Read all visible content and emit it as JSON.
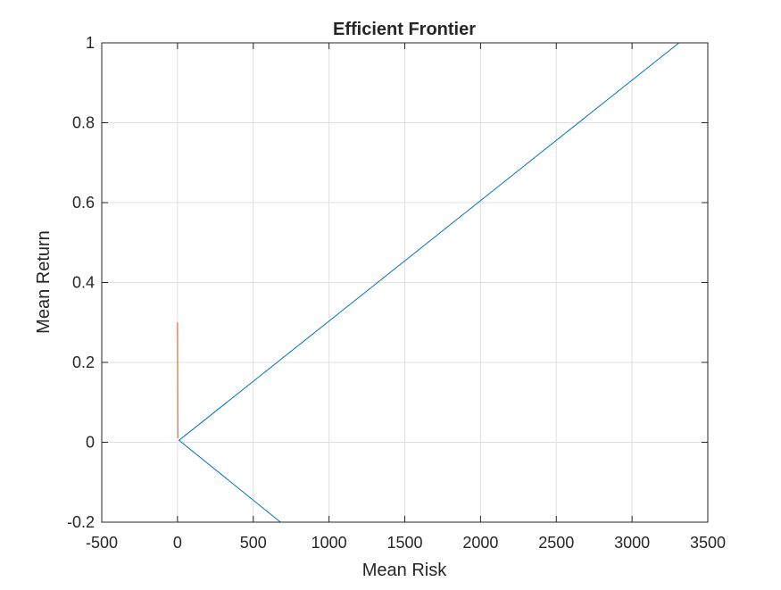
{
  "chart_data": {
    "type": "line",
    "title": "Efficient Frontier",
    "xlabel": "Mean Risk",
    "ylabel": "Mean Return",
    "xlim": [
      -500,
      3500
    ],
    "ylim": [
      -0.2,
      1
    ],
    "x_ticks": [
      -500,
      0,
      500,
      1000,
      1500,
      2000,
      2500,
      3000,
      3500
    ],
    "x_tick_labels": [
      "-500",
      "0",
      "500",
      "1000",
      "1500",
      "2000",
      "2500",
      "3000",
      "3500"
    ],
    "y_ticks": [
      -0.2,
      0,
      0.2,
      0.4,
      0.6,
      0.8,
      1
    ],
    "y_tick_labels": [
      "-0.2",
      "0",
      "0.2",
      "0.4",
      "0.6",
      "0.8",
      "1"
    ],
    "grid": true,
    "legend": "none",
    "series": [
      {
        "color": "#0072BD",
        "x": [
          680,
          10,
          3310
        ],
        "y": [
          -0.2,
          0.005,
          1
        ]
      },
      {
        "color": "#D95319",
        "x": [
          2,
          0
        ],
        "y": [
          0.01,
          0.3
        ]
      }
    ]
  }
}
